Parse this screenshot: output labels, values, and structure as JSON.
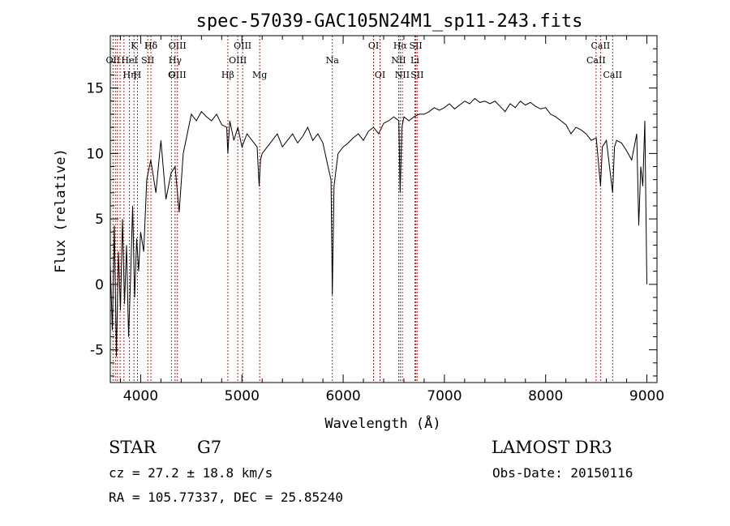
{
  "chart_data": {
    "type": "line",
    "title": "spec-57039-GAC105N24M1_sp11-243.fits",
    "xlabel": "Wavelength (Å)",
    "ylabel": "Flux (relative)",
    "xlim": [
      3700,
      9100
    ],
    "ylim": [
      -7.5,
      19
    ],
    "xticks": [
      4000,
      5000,
      6000,
      7000,
      8000,
      9000
    ],
    "yticks": [
      -5,
      0,
      5,
      10,
      15
    ],
    "grid": false,
    "series": [
      {
        "name": "spectrum",
        "x": [
          3700,
          3720,
          3740,
          3760,
          3780,
          3800,
          3820,
          3840,
          3860,
          3880,
          3900,
          3920,
          3940,
          3960,
          3980,
          4000,
          4030,
          4060,
          4100,
          4150,
          4200,
          4250,
          4300,
          4340,
          4380,
          4420,
          4460,
          4500,
          4550,
          4600,
          4650,
          4700,
          4750,
          4800,
          4850,
          4861,
          4880,
          4920,
          4960,
          5000,
          5050,
          5100,
          5150,
          5170,
          5184,
          5200,
          5250,
          5300,
          5350,
          5400,
          5450,
          5500,
          5550,
          5600,
          5650,
          5700,
          5750,
          5800,
          5850,
          5880,
          5893,
          5910,
          5950,
          6000,
          6050,
          6100,
          6150,
          6200,
          6250,
          6300,
          6350,
          6400,
          6450,
          6500,
          6550,
          6563,
          6580,
          6600,
          6650,
          6700,
          6750,
          6800,
          6850,
          6900,
          6950,
          7000,
          7050,
          7100,
          7150,
          7200,
          7250,
          7300,
          7350,
          7400,
          7450,
          7500,
          7550,
          7600,
          7650,
          7700,
          7750,
          7800,
          7850,
          7900,
          7950,
          8000,
          8050,
          8100,
          8150,
          8200,
          8250,
          8300,
          8350,
          8400,
          8450,
          8500,
          8542,
          8560,
          8600,
          8662,
          8680,
          8700,
          8750,
          8800,
          8850,
          8900,
          8920,
          8940,
          8960,
          8980,
          9000
        ],
        "y": [
          1.5,
          -3.5,
          4.5,
          -5.5,
          2.5,
          -2.0,
          5.0,
          -1.5,
          3.0,
          -4.0,
          0.5,
          6.0,
          -1.0,
          3.5,
          1.0,
          4.0,
          2.5,
          8.0,
          9.5,
          7.0,
          11.0,
          6.5,
          8.5,
          9.0,
          5.5,
          10.0,
          11.5,
          13.0,
          12.5,
          13.2,
          12.8,
          12.5,
          13.0,
          12.2,
          12.0,
          10.0,
          12.5,
          11.0,
          12.0,
          10.5,
          11.5,
          11.0,
          10.5,
          7.5,
          9.5,
          10.0,
          10.5,
          11.0,
          11.5,
          10.5,
          11.0,
          11.5,
          10.8,
          11.3,
          12.0,
          11.0,
          11.5,
          10.8,
          9.0,
          8.0,
          -0.8,
          7.5,
          10.0,
          10.5,
          10.8,
          11.2,
          11.5,
          11.0,
          11.7,
          12.0,
          11.5,
          12.3,
          12.5,
          12.8,
          12.5,
          7.0,
          12.0,
          12.8,
          12.5,
          12.8,
          13.0,
          13.0,
          13.2,
          13.5,
          13.3,
          13.5,
          13.8,
          13.4,
          13.7,
          14.0,
          13.8,
          14.2,
          13.9,
          14.0,
          13.8,
          14.0,
          13.6,
          13.2,
          13.8,
          13.5,
          14.0,
          13.7,
          13.9,
          13.6,
          13.4,
          13.5,
          13.0,
          12.8,
          12.5,
          12.2,
          11.5,
          12.0,
          11.8,
          11.5,
          11.0,
          11.2,
          7.5,
          10.5,
          11.0,
          7.0,
          10.5,
          11.0,
          10.8,
          10.2,
          9.5,
          11.5,
          4.5,
          9.0,
          7.5,
          12.5,
          0.0
        ],
        "units": "relative"
      }
    ],
    "line_labels": [
      {
        "text": "Hδ",
        "x": 4101
      },
      {
        "text": "OII",
        "x": 3727
      },
      {
        "text": "OIII",
        "x": 4363
      },
      {
        "text": "Hη",
        "x": 3889
      },
      {
        "text": "HeI",
        "x": 3889
      },
      {
        "text": "K",
        "x": 3934
      },
      {
        "text": "H",
        "x": 3968
      },
      {
        "text": "SII",
        "x": 4070
      },
      {
        "text": "Hδ",
        "x": 4101
      },
      {
        "text": "OIII",
        "x": 4363
      },
      {
        "text": "Hγ",
        "x": 4340
      },
      {
        "text": "G",
        "x": 4304
      },
      {
        "text": "OIII",
        "x": 5007
      },
      {
        "text": "OIII",
        "x": 4959
      },
      {
        "text": "Hβ",
        "x": 4861
      },
      {
        "text": "Mg",
        "x": 5175
      },
      {
        "text": "Na",
        "x": 5893
      },
      {
        "text": "OI",
        "x": 6300
      },
      {
        "text": "OI",
        "x": 6364
      },
      {
        "text": "Hα",
        "x": 6563
      },
      {
        "text": "NII",
        "x": 6548
      },
      {
        "text": "NII",
        "x": 6584
      },
      {
        "text": "SII",
        "x": 6717
      },
      {
        "text": "Li",
        "x": 6708
      },
      {
        "text": "SII",
        "x": 6731
      },
      {
        "text": "CaII",
        "x": 8542
      },
      {
        "text": "CaII",
        "x": 8498
      },
      {
        "text": "CaII",
        "x": 8662
      }
    ],
    "emission_lines": [
      3727,
      3750,
      3770,
      3797,
      3835,
      3889,
      3934,
      3968,
      4070,
      4101,
      4304,
      4340,
      4363,
      4861,
      4959,
      5007,
      5175,
      5893,
      6300,
      6364,
      6548,
      6563,
      6584,
      6708,
      6717,
      6731,
      8498,
      8542,
      8662
    ]
  },
  "info": {
    "object_class": "STAR",
    "subclass": "G7",
    "survey": "LAMOST DR3",
    "redshift": "cz = 27.2 ± 18.8 km/s",
    "obs_date": "Obs-Date: 20150116",
    "coords": "RA = 105.77337, DEC =  25.85240"
  }
}
